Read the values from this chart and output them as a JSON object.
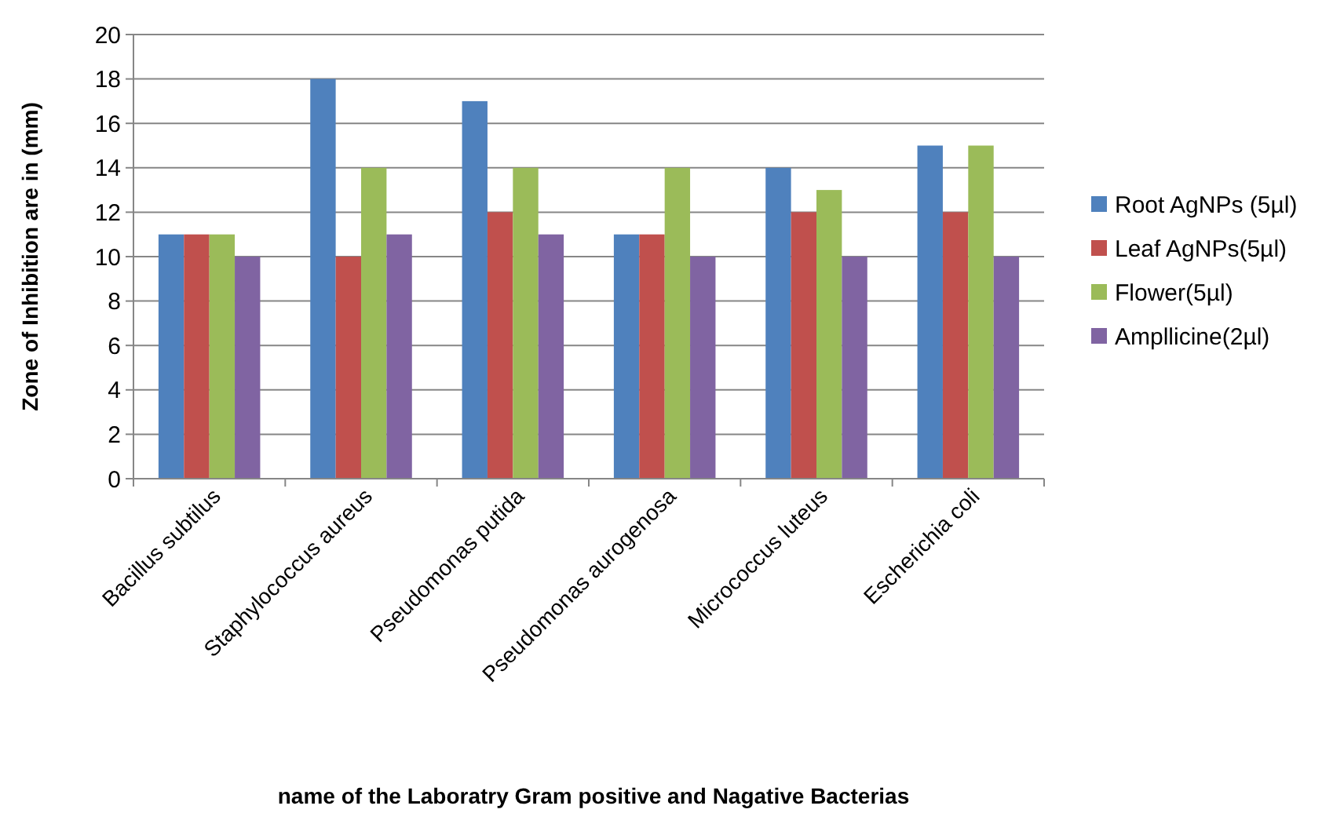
{
  "chart_data": {
    "type": "bar",
    "xlabel": "name of the Laboratry Gram positive and Nagative Bacterias",
    "ylabel": "Zone of Inhibition are in (mm)",
    "categories": [
      "Bacillus subtilus",
      "Staphylococcus aureus",
      "Pseudomonas putida",
      "Pseudomonas aurogenosa",
      "Micrococcus luteus",
      "Escherichia coli"
    ],
    "series": [
      {
        "name": "Root AgNPs (5µl)",
        "color": "#4f81bd",
        "values": [
          11,
          18,
          17,
          11,
          14,
          15
        ]
      },
      {
        "name": "Leaf AgNPs(5µl)",
        "color": "#c0504d",
        "values": [
          11,
          10,
          12,
          11,
          12,
          12
        ]
      },
      {
        "name": "Flower(5µl)",
        "color": "#9bbb59",
        "values": [
          11,
          14,
          14,
          14,
          13,
          15
        ]
      },
      {
        "name": "Ampllicine(2µl)",
        "color": "#8064a2",
        "values": [
          10,
          11,
          11,
          10,
          10,
          10
        ]
      }
    ],
    "ylim": [
      0,
      20
    ],
    "yticks": [
      0,
      2,
      4,
      6,
      8,
      10,
      12,
      14,
      16,
      18,
      20
    ],
    "grid": "y",
    "legend": "right"
  }
}
